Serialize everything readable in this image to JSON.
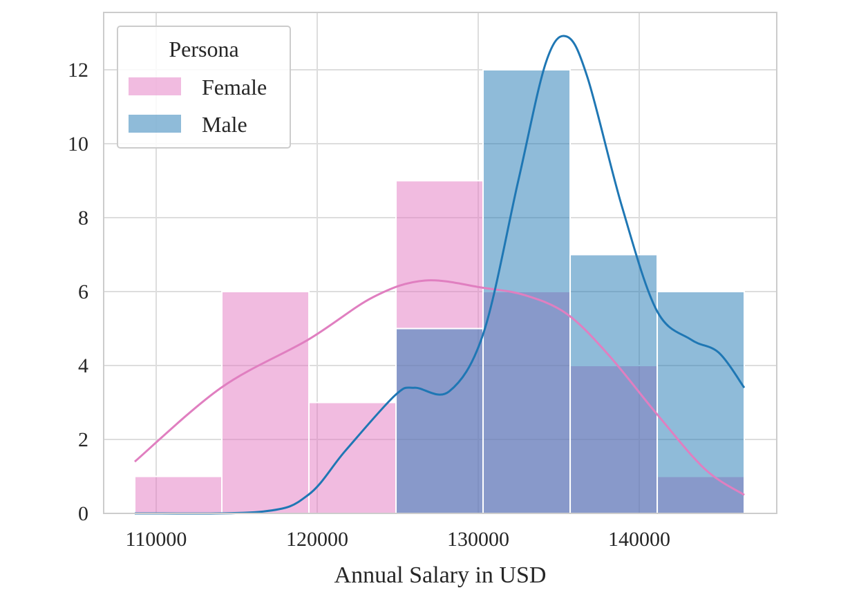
{
  "chart_data": {
    "type": "histogram",
    "title": "",
    "xlabel": "Annual Salary in USD",
    "ylabel": "",
    "xlim": [
      107100,
      148100
    ],
    "ylim": [
      0,
      13.5
    ],
    "xticks": [
      110000,
      120000,
      130000,
      140000
    ],
    "yticks": [
      0,
      2,
      4,
      6,
      8,
      10,
      12
    ],
    "grid": true,
    "bin_edges": [
      108670,
      114078,
      119486,
      124894,
      130302,
      135710,
      141118,
      146524
    ],
    "legend": {
      "title": "Persona",
      "placement": "top-left"
    },
    "series": [
      {
        "name": "Female",
        "color": "#e377c2",
        "line_color": "#e07fc0",
        "counts": [
          1,
          6,
          3,
          9,
          6,
          4,
          1
        ],
        "kde": {
          "x": [
            108670,
            114034,
            119442,
            123476,
            126695,
            130343,
            132918,
            135494,
            138069,
            141073,
            144077,
            146524
          ],
          "y": [
            1.4,
            3.4,
            4.7,
            5.85,
            6.3,
            6.1,
            5.9,
            5.4,
            4.3,
            2.7,
            1.2,
            0.5
          ]
        }
      },
      {
        "name": "Male",
        "color": "#1f77b4",
        "line_color": "#1f77b4",
        "counts": [
          0,
          0,
          0,
          5,
          12,
          7,
          6
        ],
        "kde": {
          "x": [
            108670,
            116609,
            119442,
            121760,
            124850,
            126052,
            128197,
            130343,
            132489,
            134206,
            135494,
            136781,
            138927,
            141073,
            143219,
            144936,
            146524
          ],
          "y": [
            0,
            0.05,
            0.5,
            1.7,
            3.2,
            3.4,
            3.3,
            4.9,
            9.0,
            12.2,
            12.9,
            11.8,
            8.3,
            5.5,
            4.7,
            4.35,
            3.4
          ]
        }
      }
    ]
  }
}
